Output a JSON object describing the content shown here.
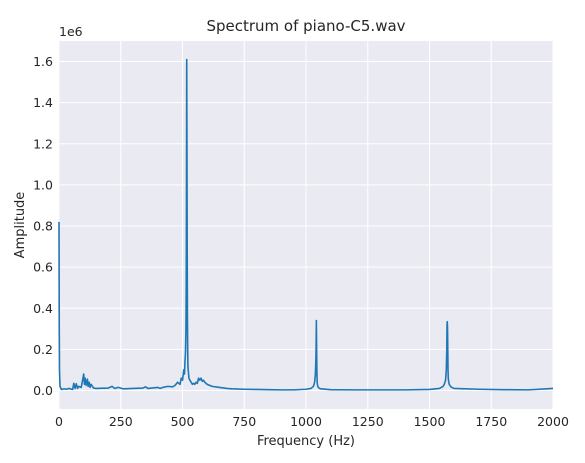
{
  "chart_data": {
    "type": "line",
    "title": "Spectrum of piano-C5.wav",
    "xlabel": "Frequency (Hz)",
    "ylabel": "Amplitude",
    "y_offset_label": "1e6",
    "xlim": [
      0,
      2000
    ],
    "ylim": [
      -0.09,
      1.7
    ],
    "grid": true,
    "background": "#eaeaf2",
    "grid_color": "#ffffff",
    "x_ticks": [
      0,
      250,
      500,
      750,
      1000,
      1250,
      1500,
      1750,
      2000
    ],
    "x_tick_labels": [
      "0",
      "250",
      "500",
      "750",
      "1000",
      "1250",
      "1500",
      "1750",
      "2000"
    ],
    "y_ticks": [
      0.0,
      0.2,
      0.4,
      0.6,
      0.8,
      1.0,
      1.2,
      1.4,
      1.6
    ],
    "y_tick_labels": [
      "0.0",
      "0.2",
      "0.4",
      "0.6",
      "0.8",
      "1.0",
      "1.2",
      "1.4",
      "1.6"
    ],
    "series": [
      {
        "color": "#1f77b4",
        "x": [
          0,
          1,
          2,
          4,
          10,
          20,
          30,
          40,
          55,
          60,
          65,
          70,
          75,
          80,
          90,
          100,
          103,
          106,
          110,
          115,
          118,
          122,
          126,
          130,
          140,
          150,
          200,
          215,
          225,
          240,
          260,
          300,
          340,
          350,
          360,
          400,
          410,
          420,
          440,
          460,
          470,
          480,
          490,
          495,
          500,
          505,
          508,
          510,
          512,
          514,
          515,
          516,
          517,
          518,
          519,
          520,
          521,
          522,
          523,
          524,
          526,
          530,
          535,
          540,
          545,
          550,
          555,
          560,
          565,
          570,
          575,
          580,
          585,
          590,
          595,
          600,
          610,
          620,
          650,
          680,
          700,
          750,
          800,
          850,
          900,
          950,
          1000,
          1020,
          1030,
          1035,
          1038,
          1040,
          1041,
          1042,
          1043,
          1044,
          1045,
          1046,
          1048,
          1050,
          1055,
          1060,
          1100,
          1200,
          1300,
          1400,
          1500,
          1540,
          1555,
          1560,
          1565,
          1568,
          1570,
          1571,
          1572,
          1573,
          1574,
          1575,
          1576,
          1578,
          1580,
          1585,
          1590,
          1600,
          1700,
          1800,
          1900,
          2000
        ],
        "values": [
          0.82,
          0.3,
          0.1,
          0.02,
          0.005,
          0.008,
          0.006,
          0.01,
          0.005,
          0.035,
          0.01,
          0.033,
          0.01,
          0.02,
          0.015,
          0.08,
          0.03,
          0.06,
          0.025,
          0.055,
          0.02,
          0.04,
          0.015,
          0.03,
          0.012,
          0.01,
          0.012,
          0.02,
          0.01,
          0.015,
          0.008,
          0.01,
          0.012,
          0.018,
          0.01,
          0.015,
          0.01,
          0.015,
          0.02,
          0.018,
          0.025,
          0.04,
          0.03,
          0.06,
          0.05,
          0.1,
          0.08,
          0.14,
          0.18,
          0.3,
          0.5,
          0.9,
          1.61,
          1.2,
          0.7,
          0.35,
          0.2,
          0.12,
          0.1,
          0.09,
          0.06,
          0.05,
          0.04,
          0.03,
          0.035,
          0.03,
          0.04,
          0.035,
          0.06,
          0.05,
          0.06,
          0.045,
          0.05,
          0.04,
          0.035,
          0.03,
          0.025,
          0.02,
          0.015,
          0.01,
          0.008,
          0.006,
          0.005,
          0.004,
          0.003,
          0.003,
          0.006,
          0.01,
          0.02,
          0.04,
          0.08,
          0.15,
          0.22,
          0.34,
          0.2,
          0.1,
          0.05,
          0.03,
          0.02,
          0.015,
          0.01,
          0.008,
          0.004,
          0.003,
          0.003,
          0.003,
          0.005,
          0.01,
          0.02,
          0.03,
          0.05,
          0.1,
          0.2,
          0.32,
          0.335,
          0.3,
          0.2,
          0.1,
          0.06,
          0.04,
          0.03,
          0.02,
          0.015,
          0.01,
          0.006,
          0.004,
          0.003,
          0.01
        ]
      }
    ]
  }
}
